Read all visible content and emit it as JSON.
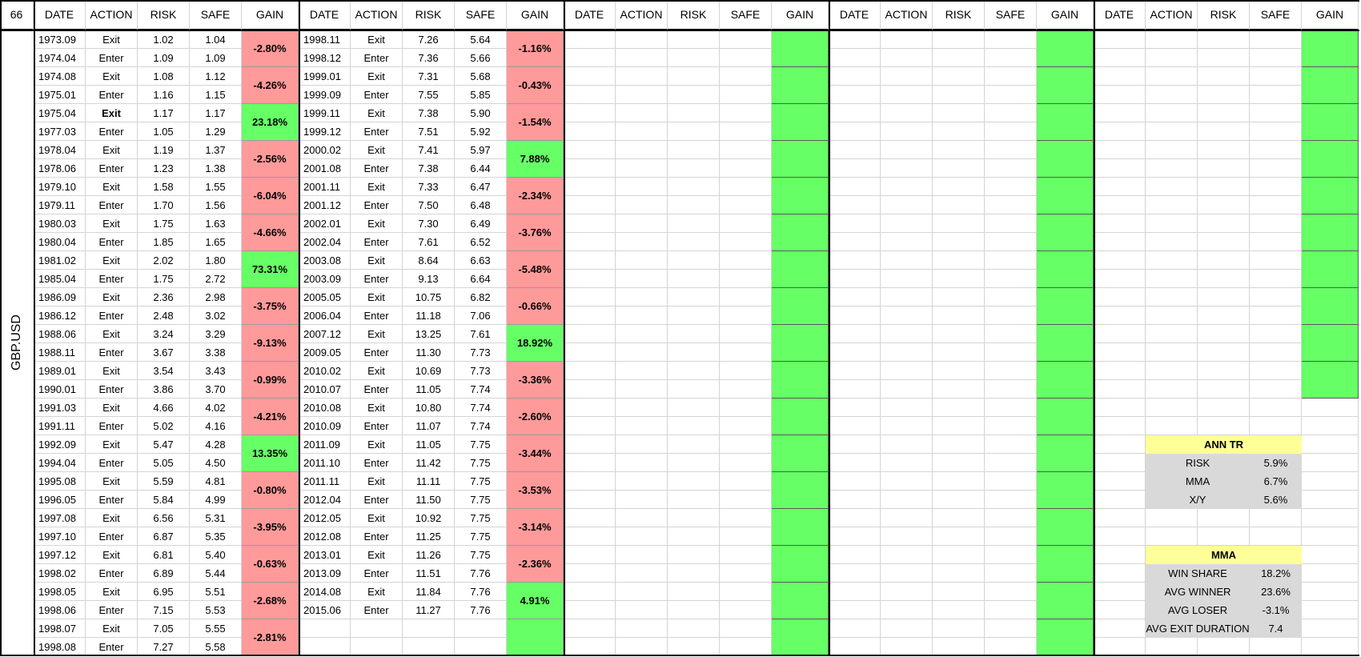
{
  "corner_label": "66",
  "side_label": "GBP.USD",
  "header_labels": [
    "DATE",
    "ACTION",
    "RISK",
    "SAFE",
    "GAIN"
  ],
  "block1": {
    "rows": [
      {
        "date": "1973.09",
        "action": "Exit",
        "risk": "1.02",
        "safe": "1.04"
      },
      {
        "date": "1974.04",
        "action": "Enter",
        "risk": "1.09",
        "safe": "1.09"
      },
      {
        "date": "1974.08",
        "action": "Exit",
        "risk": "1.08",
        "safe": "1.12"
      },
      {
        "date": "1975.01",
        "action": "Enter",
        "risk": "1.16",
        "safe": "1.15"
      },
      {
        "date": "1975.04",
        "action": "Exit",
        "risk": "1.17",
        "safe": "1.17"
      },
      {
        "date": "1977.03",
        "action": "Enter",
        "risk": "1.05",
        "safe": "1.29"
      },
      {
        "date": "1978.04",
        "action": "Exit",
        "risk": "1.19",
        "safe": "1.37"
      },
      {
        "date": "1978.06",
        "action": "Enter",
        "risk": "1.23",
        "safe": "1.38"
      },
      {
        "date": "1979.10",
        "action": "Exit",
        "risk": "1.58",
        "safe": "1.55"
      },
      {
        "date": "1979.11",
        "action": "Enter",
        "risk": "1.70",
        "safe": "1.56"
      },
      {
        "date": "1980.03",
        "action": "Exit",
        "risk": "1.75",
        "safe": "1.63"
      },
      {
        "date": "1980.04",
        "action": "Enter",
        "risk": "1.85",
        "safe": "1.65"
      },
      {
        "date": "1981.02",
        "action": "Exit",
        "risk": "2.02",
        "safe": "1.80"
      },
      {
        "date": "1985.04",
        "action": "Enter",
        "risk": "1.75",
        "safe": "2.72"
      },
      {
        "date": "1986.09",
        "action": "Exit",
        "risk": "2.36",
        "safe": "2.98"
      },
      {
        "date": "1986.12",
        "action": "Enter",
        "risk": "2.48",
        "safe": "3.02"
      },
      {
        "date": "1988.06",
        "action": "Exit",
        "risk": "3.24",
        "safe": "3.29"
      },
      {
        "date": "1988.11",
        "action": "Enter",
        "risk": "3.67",
        "safe": "3.38"
      },
      {
        "date": "1989.01",
        "action": "Exit",
        "risk": "3.54",
        "safe": "3.43"
      },
      {
        "date": "1990.01",
        "action": "Enter",
        "risk": "3.86",
        "safe": "3.70"
      },
      {
        "date": "1991.03",
        "action": "Exit",
        "risk": "4.66",
        "safe": "4.02"
      },
      {
        "date": "1991.11",
        "action": "Enter",
        "risk": "5.02",
        "safe": "4.16"
      },
      {
        "date": "1992.09",
        "action": "Exit",
        "risk": "5.47",
        "safe": "4.28"
      },
      {
        "date": "1994.04",
        "action": "Enter",
        "risk": "5.05",
        "safe": "4.50"
      },
      {
        "date": "1995.08",
        "action": "Exit",
        "risk": "5.59",
        "safe": "4.81"
      },
      {
        "date": "1996.05",
        "action": "Enter",
        "risk": "5.84",
        "safe": "4.99"
      },
      {
        "date": "1997.08",
        "action": "Exit",
        "risk": "6.56",
        "safe": "5.31"
      },
      {
        "date": "1997.10",
        "action": "Enter",
        "risk": "6.87",
        "safe": "5.35"
      },
      {
        "date": "1997.12",
        "action": "Exit",
        "risk": "6.81",
        "safe": "5.40"
      },
      {
        "date": "1998.02",
        "action": "Enter",
        "risk": "6.89",
        "safe": "5.44"
      },
      {
        "date": "1998.05",
        "action": "Exit",
        "risk": "6.95",
        "safe": "5.51"
      },
      {
        "date": "1998.06",
        "action": "Enter",
        "risk": "7.15",
        "safe": "5.53"
      },
      {
        "date": "1998.07",
        "action": "Exit",
        "risk": "7.05",
        "safe": "5.55"
      },
      {
        "date": "1998.08",
        "action": "Enter",
        "risk": "7.27",
        "safe": "5.58"
      }
    ],
    "gains": [
      "-2.80%",
      "-4.26%",
      "23.18%",
      "-2.56%",
      "-6.04%",
      "-4.66%",
      "73.31%",
      "-3.75%",
      "-9.13%",
      "-0.99%",
      "-4.21%",
      "13.35%",
      "-0.80%",
      "-3.95%",
      "-0.63%",
      "-2.68%",
      "-2.81%"
    ],
    "bold_action_rows": [
      4
    ]
  },
  "block2": {
    "rows": [
      {
        "date": "1998.11",
        "action": "Exit",
        "risk": "7.26",
        "safe": "5.64"
      },
      {
        "date": "1998.12",
        "action": "Enter",
        "risk": "7.36",
        "safe": "5.66"
      },
      {
        "date": "1999.01",
        "action": "Exit",
        "risk": "7.31",
        "safe": "5.68"
      },
      {
        "date": "1999.09",
        "action": "Enter",
        "risk": "7.55",
        "safe": "5.85"
      },
      {
        "date": "1999.11",
        "action": "Exit",
        "risk": "7.38",
        "safe": "5.90"
      },
      {
        "date": "1999.12",
        "action": "Enter",
        "risk": "7.51",
        "safe": "5.92"
      },
      {
        "date": "2000.02",
        "action": "Exit",
        "risk": "7.41",
        "safe": "5.97"
      },
      {
        "date": "2001.08",
        "action": "Enter",
        "risk": "7.38",
        "safe": "6.44"
      },
      {
        "date": "2001.11",
        "action": "Exit",
        "risk": "7.33",
        "safe": "6.47"
      },
      {
        "date": "2001.12",
        "action": "Enter",
        "risk": "7.50",
        "safe": "6.48"
      },
      {
        "date": "2002.01",
        "action": "Exit",
        "risk": "7.30",
        "safe": "6.49"
      },
      {
        "date": "2002.04",
        "action": "Enter",
        "risk": "7.61",
        "safe": "6.52"
      },
      {
        "date": "2003.08",
        "action": "Exit",
        "risk": "8.64",
        "safe": "6.63"
      },
      {
        "date": "2003.09",
        "action": "Enter",
        "risk": "9.13",
        "safe": "6.64"
      },
      {
        "date": "2005.05",
        "action": "Exit",
        "risk": "10.75",
        "safe": "6.82"
      },
      {
        "date": "2006.04",
        "action": "Enter",
        "risk": "11.18",
        "safe": "7.06"
      },
      {
        "date": "2007.12",
        "action": "Exit",
        "risk": "13.25",
        "safe": "7.61"
      },
      {
        "date": "2009.05",
        "action": "Enter",
        "risk": "11.30",
        "safe": "7.73"
      },
      {
        "date": "2010.02",
        "action": "Exit",
        "risk": "10.69",
        "safe": "7.73"
      },
      {
        "date": "2010.07",
        "action": "Enter",
        "risk": "11.05",
        "safe": "7.74"
      },
      {
        "date": "2010.08",
        "action": "Exit",
        "risk": "10.80",
        "safe": "7.74"
      },
      {
        "date": "2010.09",
        "action": "Enter",
        "risk": "11.07",
        "safe": "7.74"
      },
      {
        "date": "2011.09",
        "action": "Exit",
        "risk": "11.05",
        "safe": "7.75"
      },
      {
        "date": "2011.10",
        "action": "Enter",
        "risk": "11.42",
        "safe": "7.75"
      },
      {
        "date": "2011.11",
        "action": "Exit",
        "risk": "11.11",
        "safe": "7.75"
      },
      {
        "date": "2012.04",
        "action": "Enter",
        "risk": "11.50",
        "safe": "7.75"
      },
      {
        "date": "2012.05",
        "action": "Exit",
        "risk": "10.92",
        "safe": "7.75"
      },
      {
        "date": "2012.08",
        "action": "Enter",
        "risk": "11.25",
        "safe": "7.75"
      },
      {
        "date": "2013.01",
        "action": "Exit",
        "risk": "11.26",
        "safe": "7.75"
      },
      {
        "date": "2013.09",
        "action": "Enter",
        "risk": "11.51",
        "safe": "7.76"
      },
      {
        "date": "2014.08",
        "action": "Exit",
        "risk": "11.84",
        "safe": "7.76"
      },
      {
        "date": "2015.06",
        "action": "Enter",
        "risk": "11.27",
        "safe": "7.76"
      }
    ],
    "gains": [
      "-1.16%",
      "-0.43%",
      "-1.54%",
      "7.88%",
      "-2.34%",
      "-3.76%",
      "-5.48%",
      "-0.66%",
      "18.92%",
      "-3.36%",
      "-2.60%",
      "-3.44%",
      "-3.53%",
      "-3.14%",
      "-2.36%",
      "4.91%",
      ""
    ]
  },
  "empty_blocks": [
    {
      "green_pairs": 17
    },
    {
      "green_pairs": 17
    },
    {
      "green_pairs": 10
    }
  ],
  "ann_tr": {
    "title": "ANN TR",
    "items": [
      {
        "label": "RISK",
        "value": "5.9%"
      },
      {
        "label": "MMA",
        "value": "6.7%"
      },
      {
        "label": "X/Y",
        "value": "5.6%"
      }
    ]
  },
  "mma": {
    "title": "MMA",
    "items": [
      {
        "label": "WIN SHARE",
        "value": "18.2%"
      },
      {
        "label": "AVG WINNER",
        "value": "23.6%"
      },
      {
        "label": "AVG LOSER",
        "value": "-3.1%"
      },
      {
        "label": "AVG EXIT DURATION",
        "value": "7.4"
      }
    ]
  },
  "colors": {
    "loss": "#ff9a9a",
    "win": "#66ff66",
    "stat_title": "#ffff99",
    "stat_body": "#d9d9d9"
  }
}
